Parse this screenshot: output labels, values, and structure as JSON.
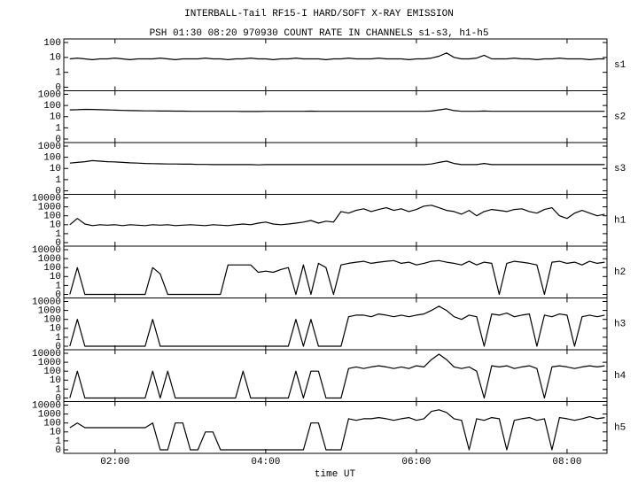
{
  "chart_data": {
    "type": "line",
    "title": "INTERBALL-Tail RF15-I HARD/SOFT X-RAY EMISSION",
    "subtitle": "PSH 01:30 08:20 970930  COUNT RATE IN CHANNELS s1-s3, h1-h5",
    "xlabel": "time UT",
    "xlim": [
      1.32,
      8.53
    ],
    "xticks": [
      {
        "value": 2,
        "label": "02:00"
      },
      {
        "value": 4,
        "label": "04:00"
      },
      {
        "value": 6,
        "label": "06:00"
      },
      {
        "value": 8,
        "label": "08:00"
      }
    ],
    "yscale": "log",
    "x": [
      1.4,
      1.5,
      1.6,
      1.7,
      1.8,
      1.9,
      2.0,
      2.1,
      2.2,
      2.3,
      2.4,
      2.5,
      2.6,
      2.7,
      2.8,
      2.9,
      3.0,
      3.1,
      3.2,
      3.3,
      3.4,
      3.5,
      3.6,
      3.7,
      3.8,
      3.9,
      4.0,
      4.1,
      4.2,
      4.3,
      4.4,
      4.5,
      4.6,
      4.7,
      4.8,
      4.9,
      5.0,
      5.1,
      5.2,
      5.3,
      5.4,
      5.5,
      5.6,
      5.7,
      5.8,
      5.9,
      6.0,
      6.1,
      6.2,
      6.3,
      6.4,
      6.5,
      6.6,
      6.7,
      6.8,
      6.9,
      7.0,
      7.1,
      7.2,
      7.3,
      7.4,
      7.5,
      7.6,
      7.7,
      7.8,
      7.9,
      8.0,
      8.1,
      8.2,
      8.3,
      8.4,
      8.5
    ],
    "series": [
      {
        "name": "s1",
        "color": "#000000",
        "ylim": [
          0,
          100
        ],
        "yticks": [
          0,
          1,
          10,
          100
        ],
        "values": [
          8,
          9,
          8,
          7,
          8,
          8,
          9,
          8,
          7,
          8,
          8,
          8,
          9,
          8,
          7,
          8,
          8,
          8,
          9,
          8,
          8,
          7,
          8,
          8,
          9,
          8,
          8,
          7,
          8,
          8,
          9,
          8,
          8,
          8,
          7,
          8,
          8,
          9,
          8,
          8,
          8,
          9,
          8,
          8,
          8,
          7,
          8,
          8,
          9,
          12,
          20,
          10,
          8,
          8,
          9,
          14,
          8,
          8,
          8,
          9,
          8,
          8,
          7,
          8,
          8,
          9,
          8,
          8,
          8,
          7,
          8,
          8
        ]
      },
      {
        "name": "s2",
        "color": "#000000",
        "ylim": [
          0,
          1000
        ],
        "yticks": [
          0,
          1,
          10,
          100,
          1000
        ],
        "values": [
          40,
          42,
          45,
          44,
          42,
          40,
          38,
          36,
          35,
          34,
          33,
          33,
          32,
          32,
          31,
          31,
          30,
          30,
          30,
          30,
          30,
          30,
          30,
          29,
          29,
          29,
          30,
          30,
          30,
          30,
          30,
          30,
          31,
          30,
          30,
          30,
          30,
          30,
          30,
          30,
          30,
          30,
          30,
          30,
          30,
          30,
          30,
          30,
          32,
          40,
          50,
          35,
          30,
          30,
          30,
          32,
          30,
          30,
          30,
          30,
          30,
          30,
          30,
          30,
          30,
          30,
          30,
          30,
          30,
          30,
          30,
          30
        ]
      },
      {
        "name": "s3",
        "color": "#000000",
        "ylim": [
          0,
          1000
        ],
        "yticks": [
          0,
          1,
          10,
          100,
          1000
        ],
        "values": [
          30,
          35,
          40,
          50,
          45,
          40,
          38,
          35,
          32,
          30,
          28,
          27,
          26,
          25,
          25,
          24,
          24,
          23,
          23,
          22,
          22,
          22,
          22,
          22,
          22,
          21,
          22,
          22,
          22,
          22,
          22,
          22,
          22,
          22,
          22,
          22,
          22,
          22,
          22,
          22,
          22,
          22,
          22,
          22,
          22,
          22,
          22,
          22,
          25,
          35,
          45,
          28,
          22,
          22,
          22,
          28,
          22,
          22,
          22,
          22,
          22,
          22,
          22,
          22,
          22,
          22,
          22,
          22,
          22,
          22,
          22,
          22
        ]
      },
      {
        "name": "h1",
        "color": "#000000",
        "ylim": [
          0,
          10000
        ],
        "yticks": [
          0,
          1,
          10,
          100,
          1000,
          10000
        ],
        "values": [
          10,
          50,
          12,
          8,
          10,
          9,
          10,
          8,
          10,
          9,
          8,
          10,
          9,
          10,
          8,
          9,
          10,
          9,
          8,
          10,
          9,
          8,
          10,
          12,
          10,
          15,
          20,
          12,
          10,
          12,
          15,
          20,
          30,
          15,
          25,
          20,
          300,
          200,
          400,
          600,
          300,
          500,
          800,
          400,
          600,
          300,
          500,
          1200,
          1500,
          800,
          400,
          300,
          150,
          400,
          100,
          300,
          500,
          400,
          300,
          500,
          600,
          300,
          200,
          500,
          800,
          100,
          50,
          200,
          400,
          200,
          100,
          150
        ]
      },
      {
        "name": "h2",
        "color": "#000000",
        "ylim": [
          0,
          10000
        ],
        "yticks": [
          0,
          1,
          10,
          100,
          1000,
          10000
        ],
        "values": [
          0,
          100,
          0,
          0,
          0,
          0,
          0,
          0,
          0,
          0,
          0,
          100,
          20,
          0,
          0,
          0,
          0,
          0,
          0,
          0,
          0,
          200,
          200,
          200,
          200,
          30,
          40,
          30,
          60,
          100,
          0,
          200,
          0,
          300,
          100,
          0,
          200,
          300,
          400,
          500,
          300,
          400,
          500,
          600,
          300,
          400,
          200,
          300,
          500,
          600,
          400,
          300,
          200,
          500,
          200,
          400,
          300,
          0,
          300,
          500,
          400,
          300,
          200,
          0,
          400,
          500,
          300,
          400,
          200,
          500,
          300,
          400
        ]
      },
      {
        "name": "h3",
        "color": "#000000",
        "ylim": [
          0,
          10000
        ],
        "yticks": [
          0,
          1,
          10,
          100,
          1000,
          10000
        ],
        "values": [
          0,
          100,
          0,
          0,
          0,
          0,
          0,
          0,
          0,
          0,
          0,
          100,
          0,
          0,
          0,
          0,
          0,
          0,
          0,
          0,
          0,
          0,
          0,
          0,
          0,
          0,
          0,
          0,
          0,
          0,
          100,
          0,
          100,
          0,
          0,
          0,
          0,
          200,
          300,
          300,
          200,
          400,
          300,
          200,
          300,
          200,
          300,
          400,
          1000,
          3000,
          1000,
          200,
          100,
          300,
          200,
          0,
          400,
          300,
          500,
          200,
          300,
          400,
          0,
          300,
          200,
          400,
          300,
          0,
          200,
          300,
          200,
          300
        ]
      },
      {
        "name": "h4",
        "color": "#000000",
        "ylim": [
          0,
          10000
        ],
        "yticks": [
          0,
          1,
          10,
          100,
          1000,
          10000
        ],
        "values": [
          0,
          100,
          0,
          0,
          0,
          0,
          0,
          0,
          0,
          0,
          0,
          100,
          0,
          100,
          0,
          0,
          0,
          0,
          0,
          0,
          0,
          0,
          0,
          100,
          0,
          0,
          0,
          0,
          0,
          0,
          100,
          0,
          100,
          100,
          0,
          0,
          0,
          200,
          300,
          200,
          300,
          400,
          300,
          200,
          300,
          200,
          400,
          300,
          2000,
          8000,
          2000,
          300,
          200,
          300,
          100,
          0,
          400,
          300,
          400,
          200,
          300,
          400,
          200,
          0,
          300,
          400,
          300,
          200,
          300,
          400,
          300,
          400
        ]
      },
      {
        "name": "h5",
        "color": "#000000",
        "ylim": [
          0,
          10000
        ],
        "yticks": [
          0,
          1,
          10,
          100,
          1000,
          10000
        ],
        "values": [
          30,
          100,
          30,
          30,
          30,
          30,
          30,
          30,
          30,
          30,
          30,
          100,
          0,
          0,
          100,
          100,
          0,
          0,
          10,
          10,
          0,
          0,
          0,
          0,
          0,
          0,
          0,
          0,
          0,
          0,
          0,
          0,
          100,
          100,
          0,
          0,
          0,
          300,
          200,
          300,
          300,
          400,
          300,
          200,
          300,
          400,
          200,
          300,
          2000,
          3000,
          1500,
          300,
          200,
          0,
          300,
          200,
          400,
          300,
          0,
          200,
          300,
          400,
          200,
          300,
          0,
          400,
          300,
          200,
          300,
          500,
          300,
          400
        ]
      }
    ]
  }
}
